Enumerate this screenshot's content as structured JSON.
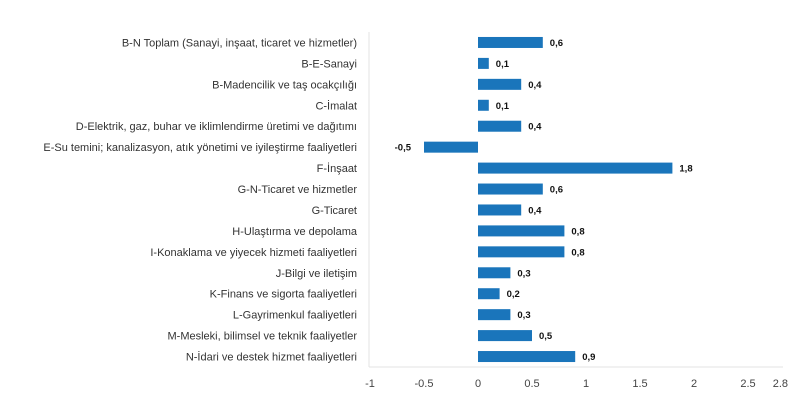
{
  "chart_data": {
    "type": "bar",
    "orientation": "horizontal",
    "title": "",
    "xlabel": "",
    "ylabel": "",
    "xlim": [
      -1,
      2.8
    ],
    "x_ticks": [
      "-1",
      "-0.5",
      "0",
      "0.5",
      "1",
      "1.5",
      "2",
      "2.5",
      "2.8"
    ],
    "x_tick_values": [
      -1,
      -0.5,
      0,
      0.5,
      1,
      1.5,
      2,
      2.5,
      2.8
    ],
    "grid": false,
    "legend": "none",
    "bar_color": "#1a75bb",
    "categories": [
      "B-N Toplam (Sanayi, inşaat, ticaret ve hizmetler)",
      "B-E-Sanayi",
      "B-Madencilik ve taş ocakçılığı",
      "C-İmalat",
      "D-Elektrik, gaz, buhar ve iklimlendirme üretimi ve dağıtımı",
      "E-Su temini; kanalizasyon, atık yönetimi ve iyileştirme faaliyetleri",
      "F-İnşaat",
      "G-N-Ticaret ve hizmetler",
      "G-Ticaret",
      "H-Ulaştırma ve depolama",
      "I-Konaklama ve yiyecek hizmeti faaliyetleri",
      "J-Bilgi ve iletişim",
      "K-Finans ve sigorta faaliyetleri",
      "L-Gayrimenkul faaliyetleri",
      "M-Mesleki, bilimsel ve teknik faaliyetler",
      "N-İdari ve destek hizmet faaliyetleri"
    ],
    "values": [
      0.6,
      0.1,
      0.4,
      0.1,
      0.4,
      -0.5,
      1.8,
      0.6,
      0.4,
      0.8,
      0.8,
      0.3,
      0.2,
      0.3,
      0.5,
      0.9
    ],
    "value_labels": [
      "0,6",
      "0,1",
      "0,4",
      "0,1",
      "0,4",
      "-0,5",
      "1,8",
      "0,6",
      "0,4",
      "0,8",
      "0,8",
      "0,3",
      "0,2",
      "0,3",
      "0,5",
      "0,9"
    ]
  }
}
